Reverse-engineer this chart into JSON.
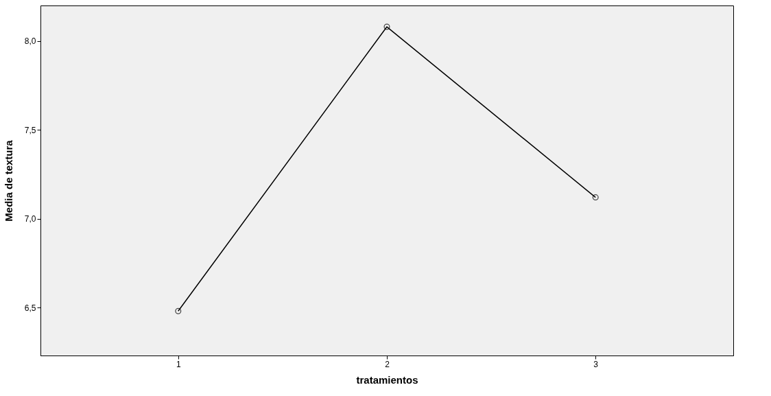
{
  "chart_data": {
    "type": "line",
    "xlabel": "tratamientos",
    "ylabel": "Media de textura",
    "categories": [
      "1",
      "2",
      "3"
    ],
    "series": [
      {
        "color": "#000000",
        "values": [
          6.48,
          8.08,
          7.12
        ]
      }
    ],
    "ylim": [
      6.23,
      8.2
    ],
    "yticks": [
      {
        "value": 6.5,
        "label": "6,5"
      },
      {
        "value": 7.0,
        "label": "7,0"
      },
      {
        "value": 7.5,
        "label": "7,5"
      },
      {
        "value": 8.0,
        "label": "8,0"
      }
    ],
    "grid": false,
    "legend": false,
    "marker": "circle",
    "line_style": "solid"
  }
}
